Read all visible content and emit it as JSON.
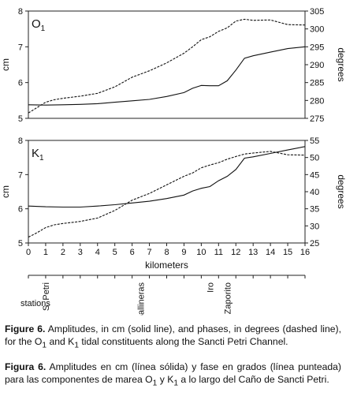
{
  "chart_data": [
    {
      "type": "line",
      "panel_label": "O1",
      "ylabel_left": "cm",
      "ylabel_right": "degrees",
      "ylim_left": [
        5,
        8
      ],
      "ylim_right": [
        275,
        305
      ],
      "yticks_left": [
        5,
        6,
        7,
        8
      ],
      "yticks_right": [
        275,
        280,
        285,
        290,
        295,
        300,
        305
      ],
      "xlim": [
        0,
        16
      ],
      "series": [
        {
          "style": "solid",
          "axis": "left",
          "x": [
            0,
            1,
            2,
            3,
            4,
            5,
            6,
            7,
            8,
            9,
            9.5,
            10,
            10.5,
            11,
            11.5,
            12,
            12.5,
            13,
            14,
            15,
            16
          ],
          "y": [
            5.38,
            5.37,
            5.38,
            5.39,
            5.41,
            5.45,
            5.49,
            5.53,
            5.61,
            5.72,
            5.84,
            5.92,
            5.91,
            5.91,
            6.05,
            6.35,
            6.68,
            6.75,
            6.85,
            6.95,
            7.0
          ]
        },
        {
          "style": "dashed",
          "axis": "right",
          "x": [
            0,
            0.5,
            1,
            1.5,
            2,
            3,
            4,
            5,
            6,
            7,
            8,
            9,
            9.5,
            10,
            10.5,
            11,
            11.5,
            12,
            12.5,
            13,
            14,
            15,
            16
          ],
          "y": [
            276.5,
            278,
            279.5,
            280.2,
            280.6,
            281.2,
            282,
            283.8,
            286.5,
            288.3,
            290.5,
            293.2,
            295,
            297,
            297.8,
            299.3,
            300.3,
            302.2,
            302.7,
            302.4,
            302.5,
            301.2,
            301.1
          ]
        }
      ]
    },
    {
      "type": "line",
      "panel_label": "K1",
      "ylabel_left": "cm",
      "ylabel_right": "degrees",
      "ylim_left": [
        5,
        8
      ],
      "ylim_right": [
        25,
        55
      ],
      "yticks_left": [
        5,
        6,
        7,
        8
      ],
      "yticks_right": [
        25,
        30,
        35,
        40,
        45,
        50,
        55
      ],
      "xlim": [
        0,
        16
      ],
      "xlabel": "kilometers",
      "xticks": [
        0,
        1,
        2,
        3,
        4,
        5,
        6,
        7,
        8,
        9,
        10,
        11,
        12,
        13,
        14,
        15,
        16
      ],
      "series": [
        {
          "style": "solid",
          "axis": "left",
          "x": [
            0,
            1,
            2,
            3,
            4,
            5,
            6,
            7,
            8,
            9,
            9.5,
            10,
            10.5,
            11,
            11.5,
            12,
            12.5,
            13,
            14,
            15,
            16
          ],
          "y": [
            6.08,
            6.06,
            6.05,
            6.05,
            6.08,
            6.12,
            6.17,
            6.22,
            6.3,
            6.4,
            6.52,
            6.6,
            6.65,
            6.82,
            6.95,
            7.15,
            7.48,
            7.52,
            7.62,
            7.72,
            7.82
          ]
        },
        {
          "style": "dashed",
          "axis": "right",
          "x": [
            0,
            0.5,
            1,
            1.5,
            2,
            3,
            4,
            5,
            6,
            7,
            8,
            9,
            9.5,
            10,
            10.5,
            11,
            11.5,
            12,
            12.5,
            13,
            14,
            15,
            16
          ],
          "y": [
            26.7,
            28,
            29.5,
            30.3,
            30.7,
            31.3,
            32.3,
            34.5,
            37.5,
            39.5,
            42,
            44.5,
            45.5,
            47,
            47.8,
            48.5,
            49.5,
            50.3,
            51,
            51.3,
            51.8,
            50.8,
            50.7
          ]
        }
      ]
    }
  ],
  "stations_label": "stations",
  "stations": [
    {
      "name": "S. Petri",
      "km": 1
    },
    {
      "name": "Gallineras",
      "km": 6.5
    },
    {
      "name": "Iro",
      "km": 10.5
    },
    {
      "name": "Zaporito",
      "km": 11.5
    }
  ],
  "caption_en": {
    "label": "Figure 6.",
    "text_a": " Amplitudes, in cm (solid line), and phases, in degrees (dashed line), for the O",
    "sub_1": "1",
    "text_b": " and K",
    "sub_2": "1",
    "text_c": " tidal constituents along the Sancti Petri Channel."
  },
  "caption_es": {
    "label": "Figura 6.",
    "text_a": " Amplitudes en cm  (línea sólida) y fase en grados (línea punteada) para las componentes de marea O",
    "sub_1": "1",
    "text_b": " y K",
    "sub_2": "1",
    "text_c": " a lo largo del Caño de Sancti Petri."
  }
}
